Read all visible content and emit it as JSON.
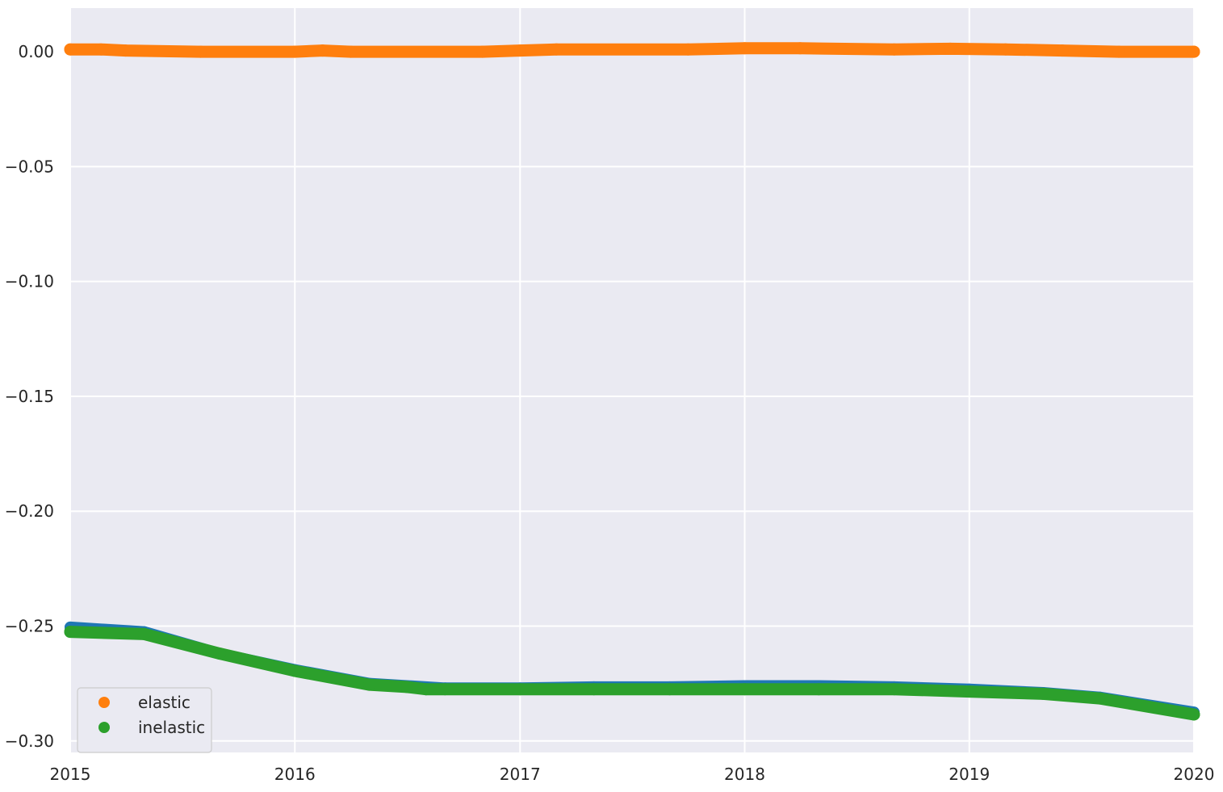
{
  "chart_data": {
    "type": "scatter",
    "title": "",
    "xlabel": "",
    "ylabel": "",
    "xlim": [
      "2015-01-01",
      "2020-01-01"
    ],
    "ylim": [
      -0.305,
      0.019
    ],
    "x_ticks": [
      "2015",
      "2016",
      "2017",
      "2018",
      "2019",
      "2020"
    ],
    "y_ticks": [
      "0.00",
      "−0.05",
      "−0.10",
      "−0.15",
      "−0.20",
      "−0.25",
      "−0.30"
    ],
    "y_tick_values": [
      0.0,
      -0.05,
      -0.1,
      -0.15,
      -0.2,
      -0.25,
      -0.3
    ],
    "grid": true,
    "legend_position": "lower-left",
    "series": [
      {
        "name": "",
        "color": "#1f77b4",
        "points": [
          [
            "2015-01-01",
            -0.2505
          ],
          [
            "2015-05-01",
            -0.2525
          ],
          [
            "2015-09-01",
            -0.262
          ],
          [
            "2016-01-01",
            -0.269
          ],
          [
            "2016-05-01",
            -0.275
          ],
          [
            "2016-09-01",
            -0.277
          ],
          [
            "2017-01-01",
            -0.277
          ],
          [
            "2017-05-01",
            -0.2765
          ],
          [
            "2017-09-01",
            -0.2765
          ],
          [
            "2018-01-01",
            -0.276
          ],
          [
            "2018-05-01",
            -0.276
          ],
          [
            "2018-09-01",
            -0.2765
          ],
          [
            "2019-01-01",
            -0.2775
          ],
          [
            "2019-05-01",
            -0.279
          ],
          [
            "2019-08-01",
            -0.281
          ],
          [
            "2020-01-01",
            -0.2875
          ]
        ]
      },
      {
        "name": "elastic",
        "color": "#ff7f0e",
        "points": [
          [
            "2015-01-01",
            0.001
          ],
          [
            "2015-02-20",
            0.001
          ],
          [
            "2015-04-01",
            0.0005
          ],
          [
            "2015-08-01",
            0.0
          ],
          [
            "2016-01-01",
            0.0
          ],
          [
            "2016-02-15",
            0.0005
          ],
          [
            "2016-04-01",
            0.0
          ],
          [
            "2016-11-01",
            0.0
          ],
          [
            "2017-01-01",
            0.0005
          ],
          [
            "2017-03-01",
            0.001
          ],
          [
            "2017-10-01",
            0.001
          ],
          [
            "2018-01-01",
            0.0015
          ],
          [
            "2018-04-01",
            0.0015
          ],
          [
            "2018-09-01",
            0.001
          ],
          [
            "2018-12-01",
            0.0013
          ],
          [
            "2019-03-01",
            0.001
          ],
          [
            "2019-06-01",
            0.0005
          ],
          [
            "2019-09-01",
            0.0
          ],
          [
            "2020-01-01",
            0.0
          ]
        ]
      },
      {
        "name": "inelastic",
        "color": "#2ca02c",
        "points": [
          [
            "2015-01-01",
            -0.2525
          ],
          [
            "2015-05-01",
            -0.2535
          ],
          [
            "2015-09-01",
            -0.262
          ],
          [
            "2016-01-01",
            -0.2695
          ],
          [
            "2016-05-01",
            -0.2755
          ],
          [
            "2016-07-01",
            -0.2765
          ],
          [
            "2016-08-01",
            -0.2775
          ],
          [
            "2016-09-01",
            -0.2775
          ],
          [
            "2017-01-01",
            -0.2775
          ],
          [
            "2017-05-01",
            -0.2775
          ],
          [
            "2017-09-01",
            -0.2775
          ],
          [
            "2018-01-01",
            -0.2775
          ],
          [
            "2018-05-01",
            -0.2775
          ],
          [
            "2018-09-01",
            -0.2775
          ],
          [
            "2019-01-01",
            -0.2785
          ],
          [
            "2019-05-01",
            -0.2795
          ],
          [
            "2019-08-01",
            -0.2815
          ],
          [
            "2020-01-01",
            -0.2885
          ]
        ]
      }
    ]
  }
}
